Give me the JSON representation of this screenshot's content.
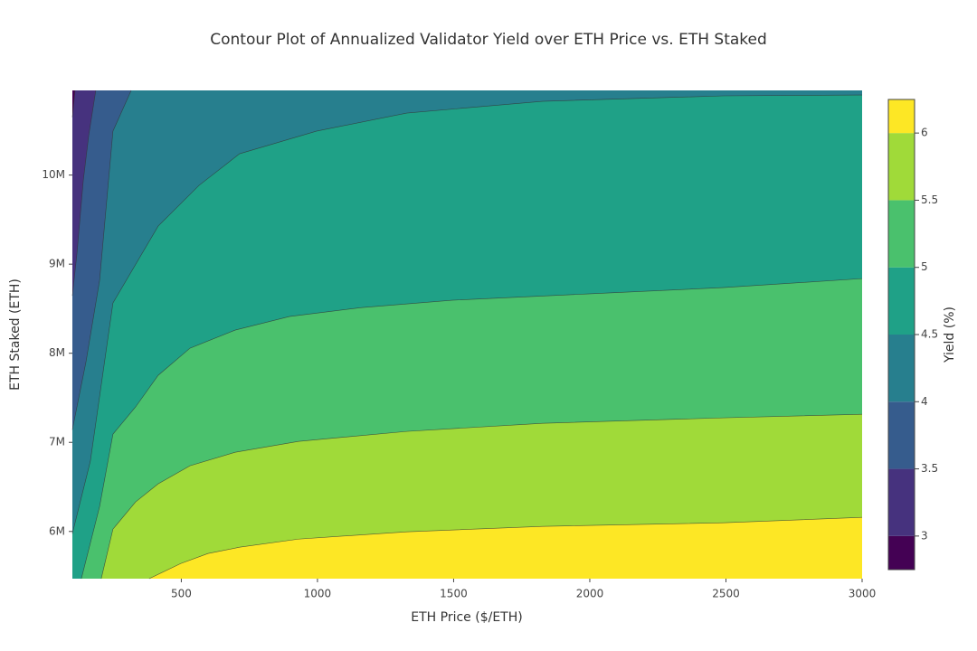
{
  "chart_data": {
    "type": "contour",
    "title": "Contour Plot of Annualized Validator Yield over ETH Price vs. ETH Staked",
    "x_label": "ETH Price ($/ETH)",
    "y_label": "ETH Staked (ETH)",
    "colorbar_title": "Yield (%)",
    "xlim": [
      100,
      3000
    ],
    "ylim": [
      5470000,
      10950000
    ],
    "xticks": [
      500,
      1000,
      1500,
      2000,
      2500,
      3000
    ],
    "yticks": [
      {
        "value": 6000000,
        "label": "6M"
      },
      {
        "value": 7000000,
        "label": "7M"
      },
      {
        "value": 8000000,
        "label": "8M"
      },
      {
        "value": 9000000,
        "label": "9M"
      },
      {
        "value": 10000000,
        "label": "10M"
      }
    ],
    "zlim": [
      2.75,
      6.25
    ],
    "zticks": [
      3,
      3.5,
      4,
      4.5,
      5,
      5.5,
      6
    ],
    "base_color": "#440154",
    "contours": [
      {
        "level": 3,
        "color": "#46327e",
        "x": [
          100,
          110
        ],
        "y": [
          10650000,
          10950000
        ]
      },
      {
        "level": 3.5,
        "color": "#365c8d",
        "x": [
          100,
          117,
          140,
          160,
          186
        ],
        "y": [
          8645000,
          9123000,
          9935000,
          10442000,
          10950000
        ]
      },
      {
        "level": 4,
        "color": "#277f8e",
        "x": [
          100,
          150,
          200,
          249,
          316
        ],
        "y": [
          7143000,
          7904000,
          8818000,
          10493000,
          10950000
        ]
      },
      {
        "level": 4.5,
        "color": "#1fa187",
        "x": [
          100,
          166,
          249,
          415,
          565,
          714,
          996,
          1328,
          1826,
          2490,
          3000
        ],
        "y": [
          5975000,
          6788000,
          8564000,
          9427000,
          9884000,
          10239000,
          10493000,
          10696000,
          10828000,
          10889000,
          10899000
        ]
      },
      {
        "level": 5,
        "color": "#4ac16d",
        "x": [
          133,
          200,
          249,
          332,
          415,
          532,
          698,
          897,
          1162,
          1494,
          1992,
          2490,
          3000
        ],
        "y": [
          5470000,
          6280000,
          7092000,
          7397000,
          7752000,
          8057000,
          8260000,
          8412000,
          8513000,
          8595000,
          8666000,
          8737000,
          8838000
        ]
      },
      {
        "level": 5.5,
        "color": "#a0da39",
        "x": [
          206,
          249,
          332,
          415,
          532,
          698,
          930,
          1328,
          1826,
          2490,
          3000
        ],
        "y": [
          5470000,
          6026000,
          6331000,
          6534000,
          6737000,
          6889000,
          7011000,
          7123000,
          7214000,
          7275000,
          7315000
        ]
      },
      {
        "level": 6,
        "color": "#fde725",
        "x": [
          382,
          498,
          598,
          714,
          930,
          1328,
          1826,
          2490,
          3000
        ],
        "y": [
          5470000,
          5640000,
          5752000,
          5823000,
          5914000,
          5996000,
          6057000,
          6097000,
          6158000
        ]
      }
    ]
  }
}
